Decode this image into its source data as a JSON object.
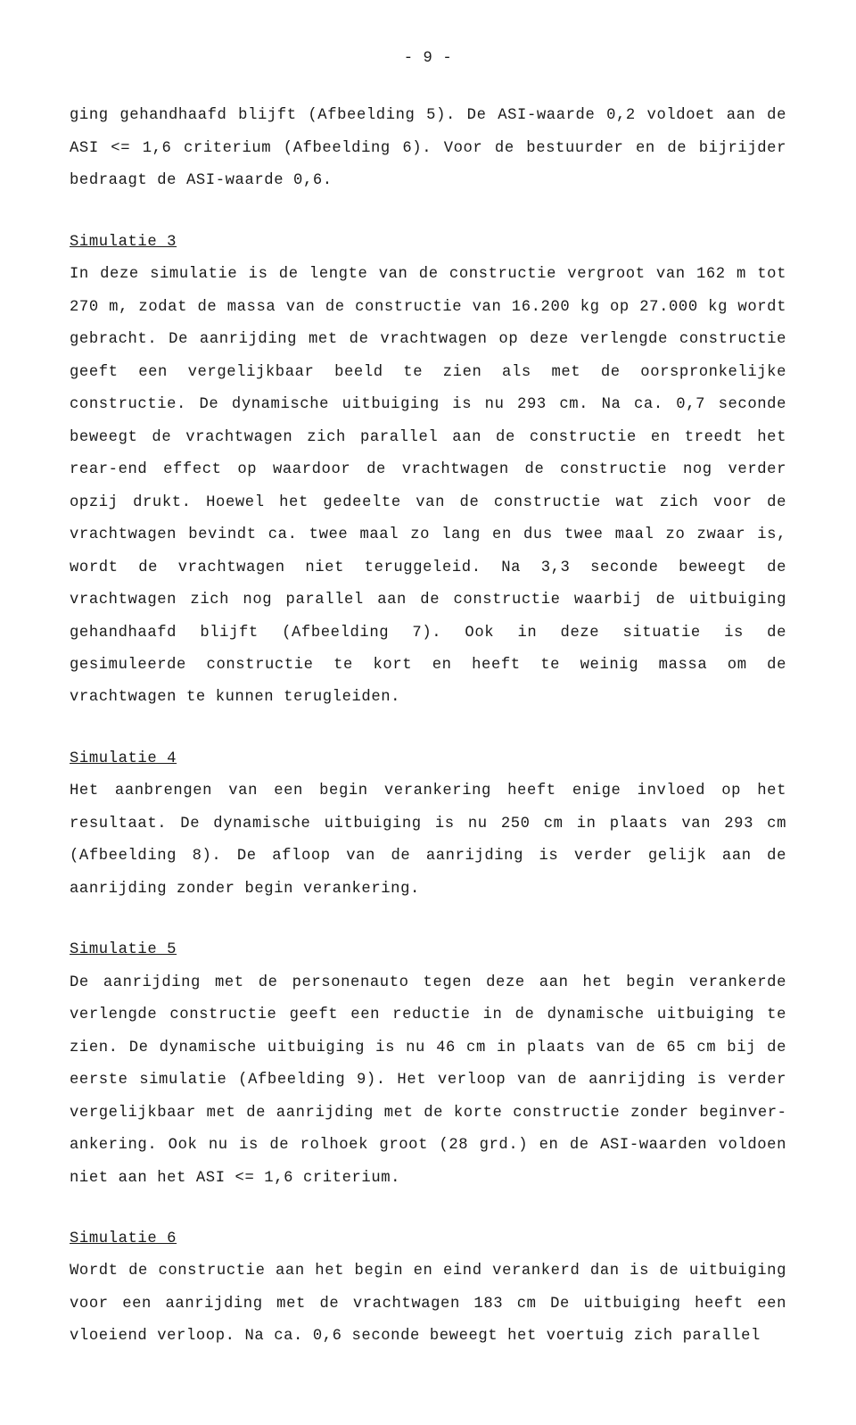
{
  "page_number": "- 9 -",
  "para1": "ging gehandhaafd blijft (Afbeelding 5). De ASI-waarde 0,2 voldoet aan de ASI <= 1,6 criterium (Afbeelding 6). Voor de bestuurder en de bijrijder bedraagt de ASI-waarde 0,6.",
  "sim3_title": "Simulatie 3",
  "sim3_body": "In deze simulatie is de lengte van de constructie vergroot van 162 m tot 270 m, zodat de massa van de constructie van 16.200 kg op 27.000 kg wordt gebracht. De aanrijding met de vrachtwagen op deze verlengde constructie geeft een vergelijkbaar beeld te zien als met de oorspronkelijke construc­tie. De dynamische uitbuiging is nu 293 cm. Na ca. 0,7 seconde beweegt de vrachtwagen zich parallel aan de constructie en treedt het rear-end effect op waardoor de vrachtwagen de constructie nog verder opzij drukt. Hoewel het gedeelte van de constructie wat zich voor de vrachtwagen bevindt ca. twee maal zo lang en dus twee maal zo zwaar is, wordt de vrachtwagen niet teruggeleid. Na 3,3 seconde beweegt de vrachtwagen zich nog parallel aan de constructie waarbij de uitbuiging gehandhaafd blijft (Afbeelding 7). Ook in deze situatie is de gesimuleerde constructie te kort en heeft te weinig massa om de vrachtwagen te kunnen terugleiden.",
  "sim4_title": "Simulatie 4",
  "sim4_body": "Het aanbrengen van een begin verankering heeft enige invloed op het resul­taat. De dynamische uitbuiging is nu 250 cm in plaats van 293 cm (Afbeel­ding 8). De afloop van de aanrijding is verder gelijk aan de aanrijding zonder begin verankering.",
  "sim5_title": "Simulatie 5",
  "sim5_body": "De aanrijding met de personenauto tegen deze aan het begin verankerde verlengde constructie geeft een reductie in de dynamische uitbuiging te zien. De dynamische uitbuiging is nu 46 cm in plaats van de 65 cm bij de eerste simulatie (Afbeelding 9). Het verloop van de aanrijding is verder vergelijkbaar met de aanrijding met de korte constructie zonder beginver­ankering. Ook nu is de rolhoek groot (28 grd.) en de ASI-waarden voldoen niet aan het ASI <= 1,6 criterium.",
  "sim6_title": "Simulatie 6",
  "sim6_body": "Wordt de constructie aan het begin en eind verankerd dan is de uitbuiging voor een aanrijding met de vrachtwagen 183 cm De uitbuiging heeft een vloeiend verloop. Na ca. 0,6 seconde beweegt het voertuig zich parallel"
}
